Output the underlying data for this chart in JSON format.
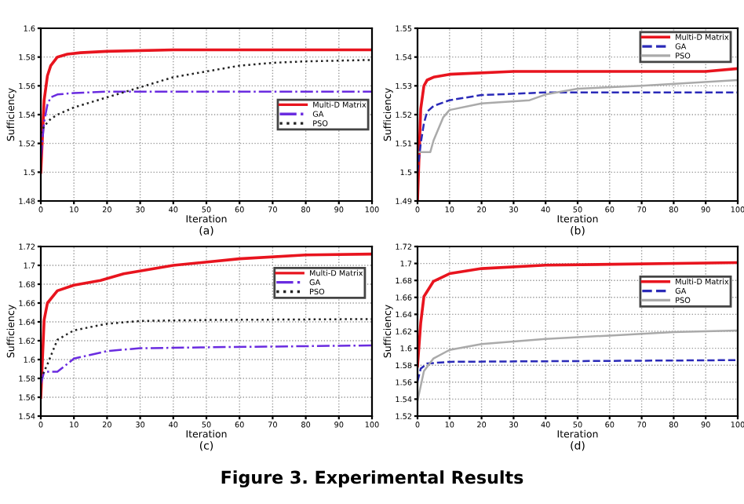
{
  "chart_data": [
    {
      "type": "line",
      "xlabel": "Iteration",
      "ylabel": "Sufficiency",
      "annotations": [
        "(a)"
      ],
      "xlim": [
        0,
        100
      ],
      "xticks": [
        0,
        10,
        20,
        30,
        40,
        50,
        60,
        70,
        80,
        90,
        100
      ],
      "ylim": [
        1.48,
        1.6
      ],
      "yticks": [
        1.48,
        1.5,
        1.52,
        1.54,
        1.56,
        1.58,
        1.6
      ],
      "grid": true,
      "legend": "right",
      "series": [
        {
          "name": "Multi-D Matrix",
          "color": "#e8141e",
          "line_style": "solid",
          "x": [
            0,
            1,
            2,
            3,
            5,
            8,
            12,
            20,
            40,
            60,
            100
          ],
          "values": [
            1.5,
            1.55,
            1.567,
            1.574,
            1.58,
            1.582,
            1.583,
            1.584,
            1.585,
            1.585,
            1.585
          ]
        },
        {
          "name": "GA",
          "color": "#6a2ce0",
          "line_style": "dashdot",
          "x": [
            0,
            1,
            2,
            3,
            5,
            10,
            20,
            40,
            100
          ],
          "values": [
            1.51,
            1.535,
            1.547,
            1.552,
            1.554,
            1.555,
            1.556,
            1.556,
            1.556
          ]
        },
        {
          "name": "PSO",
          "color": "#222222",
          "line_style": "dotted",
          "x": [
            0,
            1,
            3,
            5,
            10,
            20,
            30,
            40,
            50,
            60,
            70,
            80,
            100
          ],
          "values": [
            1.527,
            1.532,
            1.537,
            1.54,
            1.545,
            1.552,
            1.559,
            1.566,
            1.57,
            1.574,
            1.576,
            1.577,
            1.578
          ]
        }
      ]
    },
    {
      "type": "line",
      "xlabel": "Iteration",
      "ylabel": "Sufficiency",
      "annotations": [
        "(b)"
      ],
      "xlim": [
        0,
        100
      ],
      "xticks": [
        0,
        10,
        20,
        30,
        40,
        50,
        60,
        70,
        80,
        90,
        100
      ],
      "ylim": [
        1.49,
        1.55
      ],
      "yticks": [
        1.49,
        1.5,
        1.51,
        1.52,
        1.53,
        1.54,
        1.55
      ],
      "grid": true,
      "legend": "top right",
      "series": [
        {
          "name": "Multi-D Matrix",
          "color": "#e8141e",
          "line_style": "solid",
          "x": [
            0,
            1,
            2,
            3,
            5,
            10,
            30,
            60,
            90,
            100
          ],
          "values": [
            1.49,
            1.522,
            1.53,
            1.532,
            1.533,
            1.534,
            1.535,
            1.535,
            1.535,
            1.536
          ]
        },
        {
          "name": "GA",
          "color": "#2a2ab8",
          "line_style": "dashed",
          "x": [
            0,
            1,
            2,
            3,
            5,
            10,
            20,
            40,
            100
          ],
          "values": [
            1.5,
            1.51,
            1.517,
            1.521,
            1.523,
            1.525,
            1.5268,
            1.5277,
            1.5277
          ]
        },
        {
          "name": "PSO",
          "color": "#aaaaaa",
          "line_style": "solid",
          "x": [
            0,
            1,
            4,
            5,
            8,
            10,
            20,
            35,
            40,
            50,
            70,
            100
          ],
          "values": [
            1.507,
            1.507,
            1.507,
            1.511,
            1.519,
            1.5216,
            1.5239,
            1.525,
            1.527,
            1.529,
            1.53,
            1.532
          ]
        }
      ]
    },
    {
      "type": "line",
      "xlabel": "Iteration",
      "ylabel": "Sufficiency",
      "annotations": [
        "(c)"
      ],
      "xlim": [
        0,
        100
      ],
      "xticks": [
        0,
        10,
        20,
        30,
        40,
        50,
        60,
        70,
        80,
        90,
        100
      ],
      "ylim": [
        1.54,
        1.72
      ],
      "yticks": [
        1.54,
        1.56,
        1.58,
        1.6,
        1.62,
        1.64,
        1.66,
        1.68,
        1.7,
        1.72
      ],
      "grid": true,
      "legend": "top right",
      "series": [
        {
          "name": "Multi-D Matrix",
          "color": "#e8141e",
          "line_style": "solid",
          "x": [
            0,
            1,
            2,
            5,
            10,
            18,
            25,
            40,
            60,
            80,
            100
          ],
          "values": [
            1.56,
            1.642,
            1.66,
            1.673,
            1.679,
            1.684,
            1.691,
            1.7,
            1.707,
            1.711,
            1.712
          ]
        },
        {
          "name": "GA",
          "color": "#6a2ce0",
          "line_style": "dashdot",
          "x": [
            0,
            1,
            5,
            10,
            20,
            30,
            50,
            100
          ],
          "values": [
            1.574,
            1.587,
            1.587,
            1.601,
            1.609,
            1.612,
            1.613,
            1.615
          ]
        },
        {
          "name": "PSO",
          "color": "#222222",
          "line_style": "dotted",
          "x": [
            0,
            2,
            5,
            10,
            20,
            30,
            50,
            100
          ],
          "values": [
            1.58,
            1.595,
            1.621,
            1.631,
            1.638,
            1.641,
            1.642,
            1.643
          ]
        }
      ]
    },
    {
      "type": "line",
      "xlabel": "Iteration",
      "ylabel": "Sufficiency",
      "annotations": [
        "(d)",
        "Figure 3. Experimental Results"
      ],
      "xlim": [
        0,
        100
      ],
      "xticks": [
        0,
        10,
        20,
        30,
        40,
        50,
        60,
        70,
        80,
        90,
        100
      ],
      "ylim": [
        1.52,
        1.72
      ],
      "yticks": [
        1.52,
        1.54,
        1.56,
        1.58,
        1.6,
        1.62,
        1.64,
        1.66,
        1.68,
        1.7,
        1.72
      ],
      "grid": true,
      "legend": "top right",
      "series": [
        {
          "name": "Multi-D Matrix",
          "color": "#e8141e",
          "line_style": "solid",
          "x": [
            0,
            1,
            2,
            5,
            10,
            20,
            40,
            100
          ],
          "values": [
            1.579,
            1.63,
            1.661,
            1.679,
            1.688,
            1.694,
            1.698,
            1.701
          ]
        },
        {
          "name": "GA",
          "color": "#2a2ab8",
          "line_style": "dashed",
          "x": [
            0,
            1,
            3,
            10,
            100
          ],
          "values": [
            1.561,
            1.576,
            1.582,
            1.584,
            1.586
          ]
        },
        {
          "name": "PSO",
          "color": "#aaaaaa",
          "line_style": "solid",
          "x": [
            0,
            2,
            5,
            10,
            20,
            40,
            60,
            80,
            100
          ],
          "values": [
            1.538,
            1.573,
            1.588,
            1.598,
            1.605,
            1.611,
            1.615,
            1.619,
            1.621
          ]
        }
      ]
    }
  ]
}
